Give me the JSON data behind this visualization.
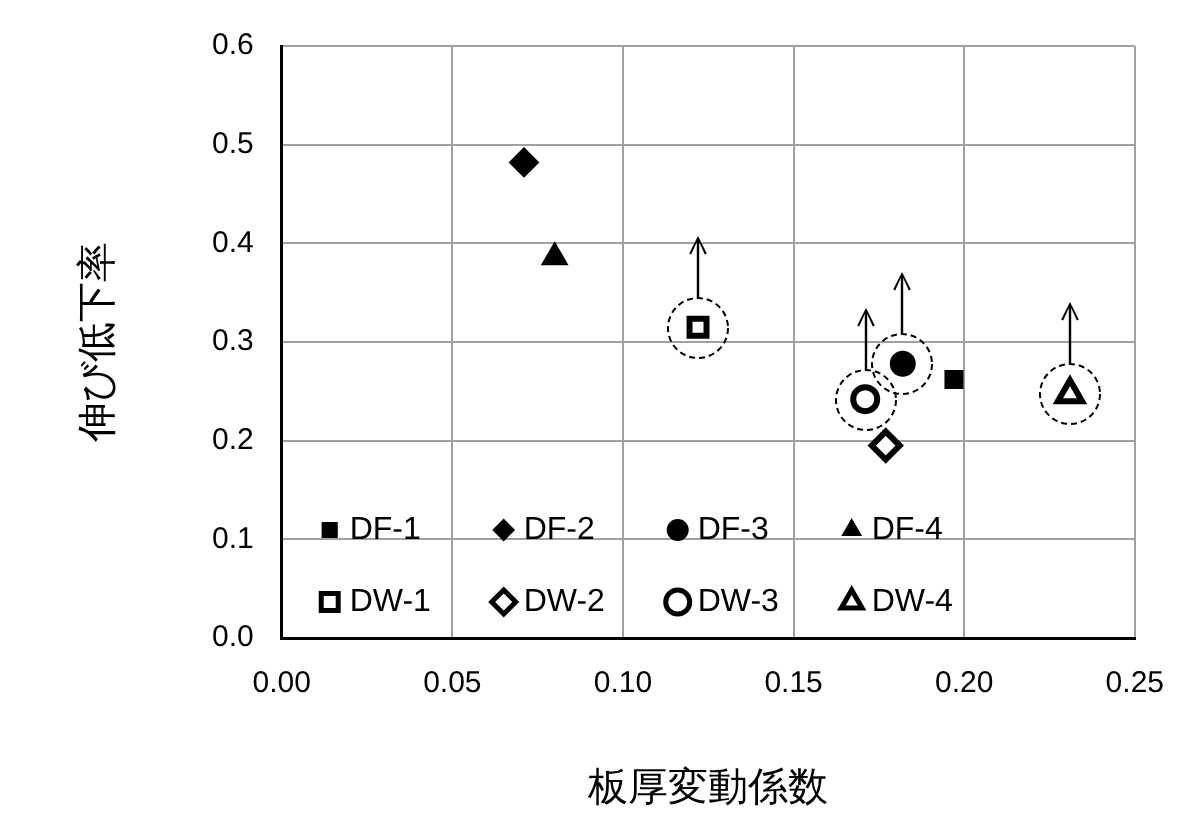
{
  "chart_data": {
    "type": "scatter",
    "xlabel": "板厚変動係数",
    "ylabel": "伸び低下率",
    "xlim": [
      0,
      0.25
    ],
    "xticks": [
      {
        "value": 0,
        "label": "0.00"
      },
      {
        "value": 0.05,
        "label": "0.05"
      },
      {
        "value": 0.1,
        "label": "0.10"
      },
      {
        "value": 0.15,
        "label": "0.15"
      },
      {
        "value": 0.2,
        "label": "0.20"
      },
      {
        "value": 0.25,
        "label": "0.25"
      }
    ],
    "ylim": [
      0,
      0.6
    ],
    "yticks": [
      {
        "value": 0,
        "label": "0.0"
      },
      {
        "value": 0.1,
        "label": "0.1"
      },
      {
        "value": 0.2,
        "label": "0.2"
      },
      {
        "value": 0.3,
        "label": "0.3"
      },
      {
        "value": 0.4,
        "label": "0.4"
      },
      {
        "value": 0.5,
        "label": "0.5"
      },
      {
        "value": 0.6,
        "label": "0.6"
      }
    ],
    "grid": true,
    "legend": "bottom left",
    "series": [
      {
        "name": "DF-1",
        "color": "#000000",
        "marker": "square",
        "x": [
          0.197
        ],
        "values": [
          0.262
        ]
      },
      {
        "name": "DF-2",
        "color": "#000000",
        "marker": "diamond",
        "x": [
          0.071
        ],
        "values": [
          0.482
        ]
      },
      {
        "name": "DF-3",
        "color": "#000000",
        "marker": "circle",
        "x": [
          0.182
        ],
        "values": [
          0.278
        ]
      },
      {
        "name": "DF-4",
        "color": "#000000",
        "marker": "triangle",
        "x": [
          0.08
        ],
        "values": [
          0.386
        ]
      },
      {
        "name": "DW-1",
        "color": "#ffffff",
        "marker": "square",
        "x": [
          0.122
        ],
        "values": [
          0.315
        ]
      },
      {
        "name": "DW-2",
        "color": "#ffffff",
        "marker": "diamond",
        "x": [
          0.177
        ],
        "values": [
          0.195
        ]
      },
      {
        "name": "DW-3",
        "color": "#ffffff",
        "marker": "circle",
        "x": [
          0.171
        ],
        "values": [
          0.242
        ]
      },
      {
        "name": "DW-4",
        "color": "#ffffff",
        "marker": "triangle",
        "x": [
          0.231
        ],
        "values": [
          0.247
        ]
      }
    ]
  }
}
